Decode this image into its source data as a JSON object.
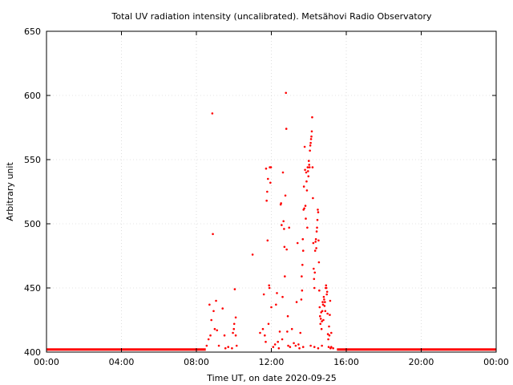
{
  "chart_data": {
    "type": "scatter",
    "title": "Total UV radiation intensity (uncalibrated). Metsähovi Radio Observatory",
    "xlabel": "Time UT, on date 2020-09-25",
    "ylabel": "Arbitrary unit",
    "xlim": [
      0,
      24
    ],
    "ylim": [
      400,
      650
    ],
    "xticks": [
      {
        "value": 0,
        "label": "00:00"
      },
      {
        "value": 4,
        "label": "04:00"
      },
      {
        "value": 8,
        "label": "08:00"
      },
      {
        "value": 12,
        "label": "12:00"
      },
      {
        "value": 16,
        "label": "16:00"
      },
      {
        "value": 20,
        "label": "20:00"
      },
      {
        "value": 24,
        "label": "00:00"
      }
    ],
    "yticks": [
      {
        "value": 400,
        "label": "400"
      },
      {
        "value": 450,
        "label": "450"
      },
      {
        "value": 500,
        "label": "500"
      },
      {
        "value": 550,
        "label": "550"
      },
      {
        "value": 600,
        "label": "600"
      },
      {
        "value": 650,
        "label": "650"
      }
    ],
    "grid": true,
    "marker_color": "#ff0000",
    "baseline": {
      "value": 402,
      "segments": [
        [
          0,
          8.5
        ],
        [
          15.5,
          24
        ]
      ]
    },
    "series": [
      {
        "points": [
          [
            8.55,
            405
          ],
          [
            8.65,
            410
          ],
          [
            8.7,
            437
          ],
          [
            8.75,
            413
          ],
          [
            8.8,
            425
          ],
          [
            8.85,
            586
          ],
          [
            8.88,
            492
          ],
          [
            8.92,
            432
          ],
          [
            8.98,
            418
          ],
          [
            9.05,
            440
          ],
          [
            9.1,
            417
          ],
          [
            9.2,
            405
          ],
          [
            9.4,
            434
          ],
          [
            9.5,
            413
          ],
          [
            9.55,
            403
          ],
          [
            9.7,
            404
          ],
          [
            9.9,
            403
          ],
          [
            9.95,
            415
          ],
          [
            10.0,
            418
          ],
          [
            10.02,
            422
          ],
          [
            10.05,
            449
          ],
          [
            10.1,
            427
          ],
          [
            10.1,
            413
          ],
          [
            10.15,
            405
          ],
          [
            11.0,
            476
          ],
          [
            11.4,
            415
          ],
          [
            11.55,
            418
          ],
          [
            11.6,
            445
          ],
          [
            11.65,
            413
          ],
          [
            11.7,
            408
          ],
          [
            11.72,
            543
          ],
          [
            11.75,
            518
          ],
          [
            11.78,
            525
          ],
          [
            11.8,
            487
          ],
          [
            11.82,
            535
          ],
          [
            11.85,
            422
          ],
          [
            11.88,
            452
          ],
          [
            11.9,
            450
          ],
          [
            11.92,
            544
          ],
          [
            11.95,
            532
          ],
          [
            11.98,
            544
          ],
          [
            12.0,
            435
          ],
          [
            12.1,
            404
          ],
          [
            12.2,
            406
          ],
          [
            12.25,
            437
          ],
          [
            12.3,
            446
          ],
          [
            12.35,
            408
          ],
          [
            12.4,
            403
          ],
          [
            12.45,
            416
          ],
          [
            12.5,
            515
          ],
          [
            12.52,
            516
          ],
          [
            12.55,
            499
          ],
          [
            12.58,
            410
          ],
          [
            12.6,
            443
          ],
          [
            12.62,
            540
          ],
          [
            12.65,
            502
          ],
          [
            12.68,
            496
          ],
          [
            12.7,
            482
          ],
          [
            12.72,
            459
          ],
          [
            12.75,
            522
          ],
          [
            12.78,
            602
          ],
          [
            12.8,
            574
          ],
          [
            12.82,
            480
          ],
          [
            12.85,
            416
          ],
          [
            12.88,
            428
          ],
          [
            12.9,
            405
          ],
          [
            12.95,
            497
          ],
          [
            13.0,
            404
          ],
          [
            13.1,
            418
          ],
          [
            13.2,
            407
          ],
          [
            13.3,
            405
          ],
          [
            13.35,
            439
          ],
          [
            13.4,
            485
          ],
          [
            13.45,
            406
          ],
          [
            13.5,
            403
          ],
          [
            13.55,
            415
          ],
          [
            13.6,
            441
          ],
          [
            13.62,
            459
          ],
          [
            13.64,
            448
          ],
          [
            13.66,
            468
          ],
          [
            13.68,
            488
          ],
          [
            13.7,
            479
          ],
          [
            13.72,
            511
          ],
          [
            13.74,
            529
          ],
          [
            13.76,
            512
          ],
          [
            13.78,
            560
          ],
          [
            13.8,
            542
          ],
          [
            13.82,
            514
          ],
          [
            13.84,
            504
          ],
          [
            13.86,
            540
          ],
          [
            13.88,
            533
          ],
          [
            13.9,
            526
          ],
          [
            13.92,
            497
          ],
          [
            13.94,
            544
          ],
          [
            13.96,
            541
          ],
          [
            13.98,
            537
          ],
          [
            14.0,
            549
          ],
          [
            14.02,
            546
          ],
          [
            14.04,
            544
          ],
          [
            14.06,
            557
          ],
          [
            14.08,
            561
          ],
          [
            14.1,
            563
          ],
          [
            14.12,
            566
          ],
          [
            14.14,
            568
          ],
          [
            14.16,
            572
          ],
          [
            14.18,
            583
          ],
          [
            14.2,
            544
          ],
          [
            14.22,
            520
          ],
          [
            14.24,
            485
          ],
          [
            14.26,
            465
          ],
          [
            14.28,
            457
          ],
          [
            14.3,
            450
          ],
          [
            14.32,
            462
          ],
          [
            14.34,
            479
          ],
          [
            14.36,
            486
          ],
          [
            14.38,
            488
          ],
          [
            14.4,
            481
          ],
          [
            14.42,
            494
          ],
          [
            14.44,
            497
          ],
          [
            14.46,
            503
          ],
          [
            14.48,
            511
          ],
          [
            14.5,
            509
          ],
          [
            14.52,
            487
          ],
          [
            14.54,
            470
          ],
          [
            14.56,
            448
          ],
          [
            14.58,
            435
          ],
          [
            14.6,
            428
          ],
          [
            14.62,
            422
          ],
          [
            14.64,
            426
          ],
          [
            14.66,
            431
          ],
          [
            14.68,
            418
          ],
          [
            14.7,
            424
          ],
          [
            14.72,
            432
          ],
          [
            14.74,
            439
          ],
          [
            14.76,
            437
          ],
          [
            14.78,
            425
          ],
          [
            14.8,
            443
          ],
          [
            14.82,
            441
          ],
          [
            14.84,
            436
          ],
          [
            14.86,
            439
          ],
          [
            14.88,
            432
          ],
          [
            14.9,
            450
          ],
          [
            14.92,
            452
          ],
          [
            14.94,
            450
          ],
          [
            14.96,
            445
          ],
          [
            14.98,
            447
          ],
          [
            15.0,
            430
          ],
          [
            15.02,
            414
          ],
          [
            15.04,
            410
          ],
          [
            15.06,
            404
          ],
          [
            15.08,
            420
          ],
          [
            15.1,
            413
          ],
          [
            15.12,
            429
          ],
          [
            15.14,
            440
          ],
          [
            15.16,
            403
          ],
          [
            15.2,
            415
          ],
          [
            13.7,
            404
          ],
          [
            14.1,
            405
          ],
          [
            14.3,
            404
          ],
          [
            14.5,
            403
          ],
          [
            14.7,
            405
          ],
          [
            15.2,
            404
          ],
          [
            15.3,
            403
          ]
        ]
      }
    ]
  }
}
